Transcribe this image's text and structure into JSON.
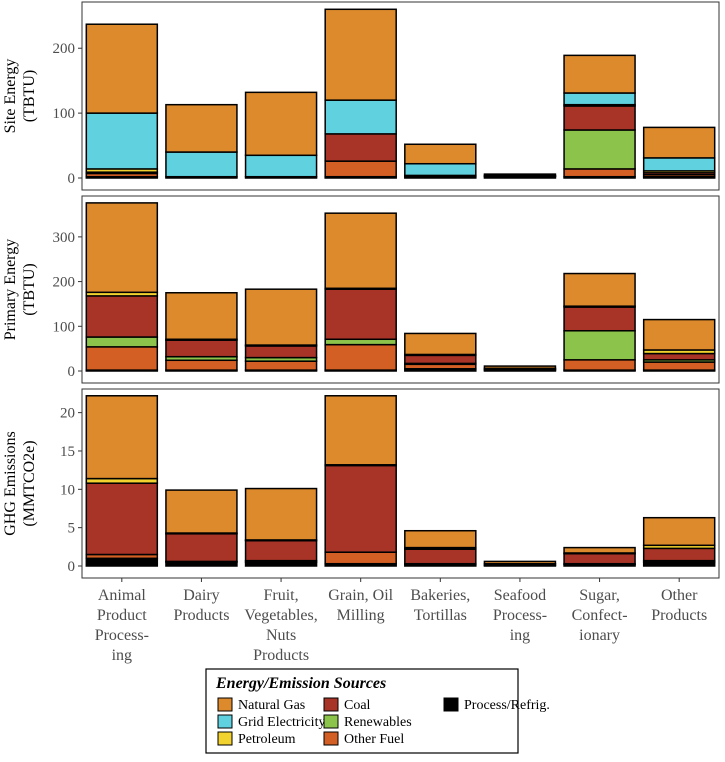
{
  "chart_data": {
    "type": "bar",
    "stacked": true,
    "categories": [
      [
        "Animal",
        "Product",
        "Process-",
        "ing"
      ],
      [
        "Dairy",
        "Products"
      ],
      [
        "Fruit,",
        "Vegetables,",
        "Nuts",
        "Products"
      ],
      [
        "Grain, Oil",
        "Milling"
      ],
      [
        "Bakeries,",
        "Tortillas"
      ],
      [
        "Seafood",
        "Process-",
        "ing"
      ],
      [
        "Sugar,",
        "Confect-",
        "ionary"
      ],
      [
        "Other",
        "Products"
      ]
    ],
    "stack_order": [
      "Process/Refrig.",
      "Other Fuel",
      "Renewables",
      "Coal",
      "Petroleum",
      "Grid Electricity",
      "Natural Gas"
    ],
    "colors": {
      "Natural Gas": "#dd8a2c",
      "Grid Electricity": "#5fd1df",
      "Petroleum": "#f2d22e",
      "Coal": "#a83428",
      "Renewables": "#8cc34a",
      "Other Fuel": "#d35f24",
      "Process/Refrig.": "#000000"
    },
    "panels": [
      {
        "ylabel": [
          "Site Energy",
          "(TBTU)"
        ],
        "ylim": [
          0,
          262
        ],
        "yticks": [
          0,
          100,
          200
        ],
        "series": [
          {
            "name": "Process/Refrig.",
            "values": [
              2,
              2,
              2,
              2,
              2,
              2,
              2,
              2
            ]
          },
          {
            "name": "Other Fuel",
            "values": [
              5,
              0,
              0,
              24,
              2,
              1,
              12,
              3
            ]
          },
          {
            "name": "Renewables",
            "values": [
              0,
              0,
              0,
              0,
              0,
              0,
              60,
              0
            ]
          },
          {
            "name": "Coal",
            "values": [
              2,
              0,
              0,
              42,
              0,
              0,
              37,
              3
            ]
          },
          {
            "name": "Petroleum",
            "values": [
              5,
              0,
              0,
              0,
              0,
              0,
              2,
              3
            ]
          },
          {
            "name": "Grid Electricity",
            "values": [
              86,
              38,
              33,
              52,
              18,
              1,
              18,
              20
            ]
          },
          {
            "name": "Natural Gas",
            "values": [
              137,
              73,
              97,
              140,
              30,
              2,
              58,
              47
            ]
          }
        ]
      },
      {
        "ylabel": [
          "Primary Energy",
          "(TBTU)"
        ],
        "ylim": [
          0,
          378
        ],
        "yticks": [
          0,
          100,
          200,
          300
        ],
        "series": [
          {
            "name": "Process/Refrig.",
            "values": [
              2,
              2,
              2,
              2,
              5,
              2,
              2,
              2
            ]
          },
          {
            "name": "Other Fuel",
            "values": [
              52,
              22,
              20,
              57,
              10,
              2,
              23,
              18
            ]
          },
          {
            "name": "Renewables",
            "values": [
              22,
              8,
              8,
              12,
              2,
              0,
              65,
              5
            ]
          },
          {
            "name": "Coal",
            "values": [
              92,
              37,
              26,
              112,
              18,
              2,
              53,
              14
            ]
          },
          {
            "name": "Petroleum",
            "values": [
              8,
              2,
              2,
              2,
              2,
              0,
              2,
              8
            ]
          },
          {
            "name": "Grid Electricity",
            "values": [
              0,
              0,
              0,
              0,
              0,
              0,
              0,
              0
            ]
          },
          {
            "name": "Natural Gas",
            "values": [
              200,
              104,
              125,
              168,
              47,
              5,
              73,
              68
            ]
          }
        ]
      },
      {
        "ylabel": [
          "GHG Emissions",
          "(MMTCO2e)"
        ],
        "ylim": [
          0,
          22.3
        ],
        "yticks": [
          0,
          5,
          10,
          15,
          20
        ],
        "series": [
          {
            "name": "Process/Refrig.",
            "values": [
              1.0,
              0.5,
              0.5,
              0.3,
              0.2,
              0.1,
              0.2,
              0.5
            ]
          },
          {
            "name": "Other Fuel",
            "values": [
              0.5,
              0.1,
              0.2,
              1.5,
              0.1,
              0.0,
              0.1,
              0.2
            ]
          },
          {
            "name": "Renewables",
            "values": [
              0.0,
              0.0,
              0.0,
              0.0,
              0.0,
              0.0,
              0.0,
              0.0
            ]
          },
          {
            "name": "Coal",
            "values": [
              9.3,
              3.6,
              2.6,
              11.3,
              1.9,
              0.2,
              1.3,
              1.6
            ]
          },
          {
            "name": "Petroleum",
            "values": [
              0.6,
              0.1,
              0.1,
              0.1,
              0.2,
              0.0,
              0.1,
              0.4
            ]
          },
          {
            "name": "Grid Electricity",
            "values": [
              0.0,
              0.0,
              0.0,
              0.0,
              0.0,
              0.0,
              0.0,
              0.0
            ]
          },
          {
            "name": "Natural Gas",
            "values": [
              10.8,
              5.6,
              6.7,
              9.0,
              2.2,
              0.3,
              0.7,
              3.6
            ]
          }
        ]
      }
    ],
    "legend": {
      "title": "Energy/Emission Sources",
      "placement": "bottom",
      "entries": [
        "Natural Gas",
        "Grid Electricity",
        "Petroleum",
        "Coal",
        "Renewables",
        "Other Fuel",
        "Process/Refrig."
      ]
    }
  }
}
